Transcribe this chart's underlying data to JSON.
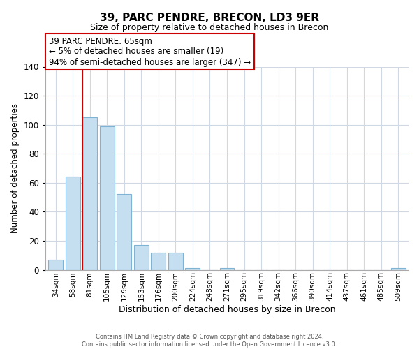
{
  "title": "39, PARC PENDRE, BRECON, LD3 9ER",
  "subtitle": "Size of property relative to detached houses in Brecon",
  "xlabel": "Distribution of detached houses by size in Brecon",
  "ylabel": "Number of detached properties",
  "bar_labels": [
    "34sqm",
    "58sqm",
    "81sqm",
    "105sqm",
    "129sqm",
    "153sqm",
    "176sqm",
    "200sqm",
    "224sqm",
    "248sqm",
    "271sqm",
    "295sqm",
    "319sqm",
    "342sqm",
    "366sqm",
    "390sqm",
    "414sqm",
    "437sqm",
    "461sqm",
    "485sqm",
    "509sqm"
  ],
  "bar_values": [
    7,
    64,
    105,
    99,
    52,
    17,
    12,
    12,
    1,
    0,
    1,
    0,
    0,
    0,
    0,
    0,
    0,
    0,
    0,
    0,
    1
  ],
  "bar_color": "#c6dff0",
  "bar_edge_color": "#7fb3d3",
  "ylim": [
    0,
    140
  ],
  "yticks": [
    0,
    20,
    40,
    60,
    80,
    100,
    120,
    140
  ],
  "vline_color": "#cc0000",
  "annotation_title": "39 PARC PENDRE: 65sqm",
  "annotation_line1": "← 5% of detached houses are smaller (19)",
  "annotation_line2": "94% of semi-detached houses are larger (347) →",
  "annotation_box_color": "#ffffff",
  "annotation_box_edgecolor": "#cc0000",
  "footer1": "Contains HM Land Registry data © Crown copyright and database right 2024.",
  "footer2": "Contains public sector information licensed under the Open Government Licence v3.0.",
  "background_color": "#ffffff",
  "grid_color": "#d0d8e4"
}
